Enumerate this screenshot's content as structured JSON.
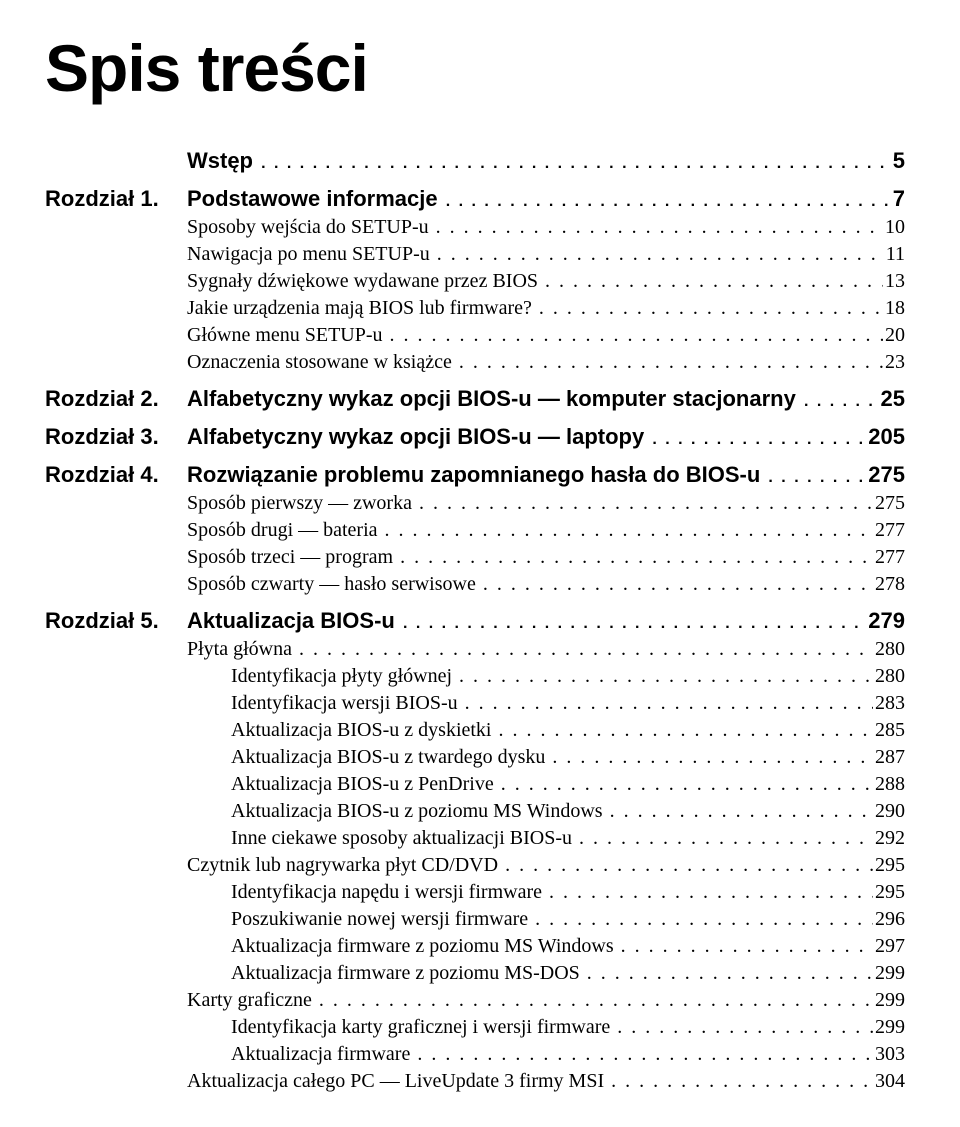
{
  "title": "Spis treści",
  "font": {
    "title_size": 66,
    "chapter_size": 22,
    "body_size": 20
  },
  "colors": {
    "text": "#000000",
    "bg": "#ffffff"
  },
  "toc": [
    {
      "type": "chapter",
      "label": "",
      "title": "Wstęp",
      "page": "5",
      "dots_bold": true,
      "indent": 1
    },
    {
      "type": "chapter",
      "label": "Rozdział 1.",
      "title": "Podstawowe informacje",
      "page": "7",
      "dots_bold": true
    },
    {
      "type": "entry",
      "indent": 1,
      "title": "Sposoby wejścia do SETUP-u",
      "page": "10"
    },
    {
      "type": "entry",
      "indent": 1,
      "title": "Nawigacja po menu SETUP-u",
      "page": "11"
    },
    {
      "type": "entry",
      "indent": 1,
      "title": "Sygnały dźwiękowe wydawane przez BIOS",
      "page": "13"
    },
    {
      "type": "entry",
      "indent": 1,
      "title": "Jakie urządzenia mają BIOS lub firmware?",
      "page": "18"
    },
    {
      "type": "entry",
      "indent": 1,
      "title": "Główne menu SETUP-u",
      "page": "20"
    },
    {
      "type": "entry",
      "indent": 1,
      "title": "Oznaczenia stosowane w książce",
      "page": "23"
    },
    {
      "type": "chapter",
      "label": "Rozdział 2.",
      "title": "Alfabetyczny wykaz opcji BIOS-u — komputer stacjonarny",
      "page": "25",
      "dots_bold": true
    },
    {
      "type": "chapter",
      "label": "Rozdział 3.",
      "title": "Alfabetyczny wykaz opcji BIOS-u — laptopy",
      "page": "205",
      "dots_bold": true
    },
    {
      "type": "chapter",
      "label": "Rozdział 4.",
      "title": "Rozwiązanie problemu zapomnianego hasła do BIOS-u",
      "page": "275",
      "dots_bold": true
    },
    {
      "type": "entry",
      "indent": 1,
      "title": "Sposób pierwszy — zworka",
      "page": "275"
    },
    {
      "type": "entry",
      "indent": 1,
      "title": "Sposób drugi — bateria",
      "page": "277"
    },
    {
      "type": "entry",
      "indent": 1,
      "title": "Sposób trzeci — program",
      "page": "277"
    },
    {
      "type": "entry",
      "indent": 1,
      "title": "Sposób czwarty — hasło serwisowe",
      "page": "278"
    },
    {
      "type": "chapter",
      "label": "Rozdział 5.",
      "title": "Aktualizacja BIOS-u",
      "page": "279",
      "dots_bold": true
    },
    {
      "type": "entry",
      "indent": 1,
      "title": "Płyta główna",
      "page": "280"
    },
    {
      "type": "entry",
      "indent": 2,
      "title": "Identyfikacja płyty głównej",
      "page": "280"
    },
    {
      "type": "entry",
      "indent": 2,
      "title": "Identyfikacja wersji BIOS-u",
      "page": "283"
    },
    {
      "type": "entry",
      "indent": 2,
      "title": "Aktualizacja BIOS-u z dyskietki",
      "page": "285"
    },
    {
      "type": "entry",
      "indent": 2,
      "title": "Aktualizacja BIOS-u z twardego dysku",
      "page": "287"
    },
    {
      "type": "entry",
      "indent": 2,
      "title": "Aktualizacja BIOS-u z PenDrive",
      "page": "288"
    },
    {
      "type": "entry",
      "indent": 2,
      "title": "Aktualizacja BIOS-u z poziomu MS Windows",
      "page": "290"
    },
    {
      "type": "entry",
      "indent": 2,
      "title": "Inne ciekawe sposoby aktualizacji BIOS-u",
      "page": "292"
    },
    {
      "type": "entry",
      "indent": 1,
      "title": "Czytnik lub nagrywarka płyt CD/DVD",
      "page": "295"
    },
    {
      "type": "entry",
      "indent": 2,
      "title": "Identyfikacja napędu i wersji firmware",
      "page": "295"
    },
    {
      "type": "entry",
      "indent": 2,
      "title": "Poszukiwanie nowej wersji firmware",
      "page": "296"
    },
    {
      "type": "entry",
      "indent": 2,
      "title": "Aktualizacja firmware z poziomu MS Windows",
      "page": "297"
    },
    {
      "type": "entry",
      "indent": 2,
      "title": "Aktualizacja firmware z poziomu MS-DOS",
      "page": "299"
    },
    {
      "type": "entry",
      "indent": 1,
      "title": "Karty graficzne",
      "page": "299"
    },
    {
      "type": "entry",
      "indent": 2,
      "title": "Identyfikacja karty graficznej i wersji firmware",
      "page": "299"
    },
    {
      "type": "entry",
      "indent": 2,
      "title": "Aktualizacja firmware",
      "page": "303"
    },
    {
      "type": "entry",
      "indent": 1,
      "title": "Aktualizacja całego PC — LiveUpdate 3 firmy MSI",
      "page": "304"
    }
  ]
}
